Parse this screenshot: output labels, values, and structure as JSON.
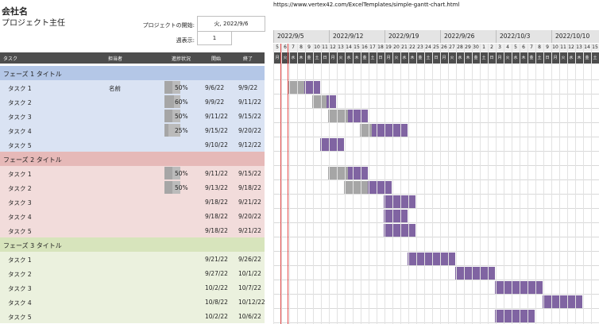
{
  "header": {
    "company": "会社名",
    "manager": "プロジェクト主任",
    "url": "https://www.vertex42.com/ExcelTemplates/simple-gantt-chart.html",
    "start_label": "プロジェクトの開始:",
    "start_value": "火, 2022/9/6",
    "week_label": "週表示:",
    "week_value": "1"
  },
  "columns": {
    "task": "タスク",
    "owner": "担当者",
    "progress": "進捗状況",
    "start": "開始",
    "end": "終了"
  },
  "weeks": [
    "2022/9/5",
    "2022/9/12",
    "2022/9/19",
    "2022/9/26",
    "2022/10/3",
    "2022/10/10"
  ],
  "days": [
    "5",
    "6",
    "7",
    "8",
    "9",
    "10",
    "11",
    "12",
    "13",
    "14",
    "15",
    "16",
    "17",
    "18",
    "19",
    "20",
    "21",
    "22",
    "23",
    "24",
    "25",
    "26",
    "27",
    "28",
    "29",
    "30",
    "1",
    "2",
    "3",
    "4",
    "5",
    "6",
    "7",
    "8",
    "9",
    "10",
    "11",
    "12",
    "13",
    "14",
    "15"
  ],
  "daynames": [
    "月",
    "火",
    "水",
    "木",
    "金",
    "土",
    "日",
    "月",
    "火",
    "水",
    "木",
    "金",
    "土",
    "日",
    "月",
    "火",
    "水",
    "木",
    "金",
    "土",
    "日",
    "月",
    "火",
    "水",
    "木",
    "金",
    "土",
    "日",
    "月",
    "火",
    "水",
    "木",
    "金",
    "土",
    "日",
    "月",
    "火",
    "水",
    "木",
    "金",
    "土"
  ],
  "colors": {
    "phase1_head": "#b4c7e7",
    "phase1_row": "#dae3f3",
    "phase2_head": "#e6b9b8",
    "phase2_row": "#f2dcdb",
    "phase3_head": "#d7e4bc",
    "phase3_row": "#ebf1de",
    "bar": "#8064a2",
    "bar_done": "#a6a6a6",
    "today": "#e34a4a"
  },
  "rows": [
    {
      "type": "phase",
      "title": "フェーズ 1 タイトル",
      "phase": 1
    },
    {
      "type": "task",
      "name": "タスク 1",
      "owner": "名前",
      "progress": "50%",
      "pct": 0.5,
      "start": "9/6/22",
      "end": "9/9/22",
      "phase": 1,
      "s": 1,
      "d": 4
    },
    {
      "type": "task",
      "name": "タスク 2",
      "owner": "",
      "progress": "60%",
      "pct": 0.6,
      "start": "9/9/22",
      "end": "9/11/22",
      "phase": 1,
      "s": 4,
      "d": 3
    },
    {
      "type": "task",
      "name": "タスク 3",
      "owner": "",
      "progress": "50%",
      "pct": 0.5,
      "start": "9/11/22",
      "end": "9/15/22",
      "phase": 1,
      "s": 6,
      "d": 5
    },
    {
      "type": "task",
      "name": "タスク 4",
      "owner": "",
      "progress": "25%",
      "pct": 0.25,
      "start": "9/15/22",
      "end": "9/20/22",
      "phase": 1,
      "s": 10,
      "d": 6
    },
    {
      "type": "task",
      "name": "タスク 5",
      "owner": "",
      "progress": "",
      "pct": 0,
      "start": "9/10/22",
      "end": "9/12/22",
      "phase": 1,
      "s": 5,
      "d": 3
    },
    {
      "type": "phase",
      "title": "フェーズ 2 タイトル",
      "phase": 2
    },
    {
      "type": "task",
      "name": "タスク 1",
      "owner": "",
      "progress": "50%",
      "pct": 0.5,
      "start": "9/11/22",
      "end": "9/15/22",
      "phase": 2,
      "s": 6,
      "d": 5
    },
    {
      "type": "task",
      "name": "タスク 2",
      "owner": "",
      "progress": "50%",
      "pct": 0.5,
      "start": "9/13/22",
      "end": "9/18/22",
      "phase": 2,
      "s": 8,
      "d": 6
    },
    {
      "type": "task",
      "name": "タスク 3",
      "owner": "",
      "progress": "",
      "pct": 0,
      "start": "9/18/22",
      "end": "9/21/22",
      "phase": 2,
      "s": 13,
      "d": 4
    },
    {
      "type": "task",
      "name": "タスク 4",
      "owner": "",
      "progress": "",
      "pct": 0,
      "start": "9/18/22",
      "end": "9/20/22",
      "phase": 2,
      "s": 13,
      "d": 3
    },
    {
      "type": "task",
      "name": "タスク 5",
      "owner": "",
      "progress": "",
      "pct": 0,
      "start": "9/18/22",
      "end": "9/21/22",
      "phase": 2,
      "s": 13,
      "d": 4
    },
    {
      "type": "phase",
      "title": "フェーズ 3 タイトル",
      "phase": 3
    },
    {
      "type": "task",
      "name": "タスク 1",
      "owner": "",
      "progress": "",
      "pct": 0,
      "start": "9/21/22",
      "end": "9/26/22",
      "phase": 3,
      "s": 16,
      "d": 6
    },
    {
      "type": "task",
      "name": "タスク 2",
      "owner": "",
      "progress": "",
      "pct": 0,
      "start": "9/27/22",
      "end": "10/1/22",
      "phase": 3,
      "s": 22,
      "d": 5
    },
    {
      "type": "task",
      "name": "タスク 3",
      "owner": "",
      "progress": "",
      "pct": 0,
      "start": "10/2/22",
      "end": "10/7/22",
      "phase": 3,
      "s": 27,
      "d": 6
    },
    {
      "type": "task",
      "name": "タスク 4",
      "owner": "",
      "progress": "",
      "pct": 0,
      "start": "10/8/22",
      "end": "10/12/22",
      "phase": 3,
      "s": 33,
      "d": 5
    },
    {
      "type": "task",
      "name": "タスク 5",
      "owner": "",
      "progress": "",
      "pct": 0,
      "start": "10/2/22",
      "end": "10/6/22",
      "phase": 3,
      "s": 27,
      "d": 5
    }
  ]
}
